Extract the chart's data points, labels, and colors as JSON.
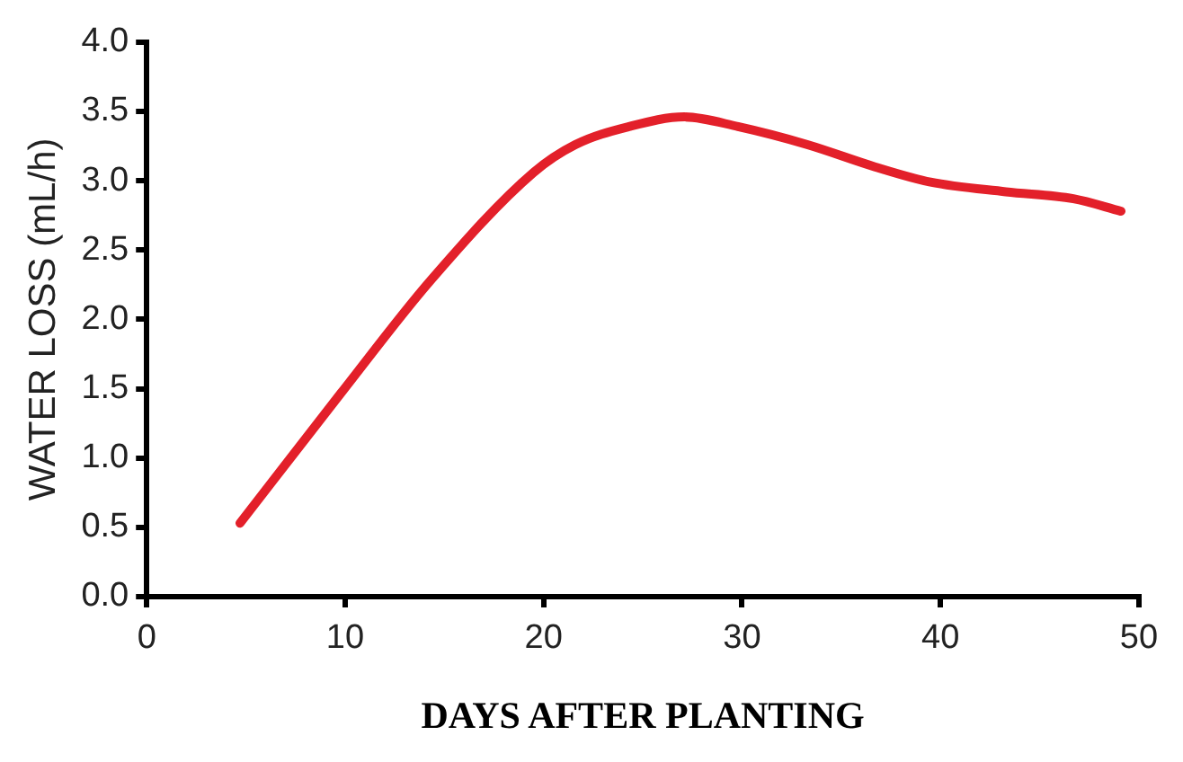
{
  "chart_data": {
    "type": "line",
    "xlabel": "DAYS AFTER PLANTING",
    "ylabel": "WATER LOSS (mL/h)",
    "x": [
      4.7,
      9.8,
      14.3,
      19.5,
      21.6,
      24.3,
      27.1,
      29.8,
      33.3,
      36.7,
      39.5,
      43.3,
      46.7,
      49.1
    ],
    "series": [
      {
        "color": "#e3202a",
        "values": [
          0.53,
          1.47,
          2.28,
          3.06,
          3.26,
          3.39,
          3.46,
          3.39,
          3.26,
          3.1,
          2.99,
          2.92,
          2.87,
          2.78
        ]
      }
    ],
    "xlim": [
      0,
      50
    ],
    "xticks": [
      0,
      10,
      20,
      30,
      40,
      50
    ],
    "ylim": [
      0,
      4
    ],
    "yticks": [
      {
        "value": 0,
        "label": "0.0"
      },
      {
        "value": 0.5,
        "label": "0.5"
      },
      {
        "value": 1,
        "label": "1.0"
      },
      {
        "value": 1.5,
        "label": "1.5"
      },
      {
        "value": 2,
        "label": "2.0"
      },
      {
        "value": 2.5,
        "label": "2.5"
      },
      {
        "value": 3,
        "label": "3.0"
      },
      {
        "value": 3.5,
        "label": "3.5"
      },
      {
        "value": 4,
        "label": "4.0"
      }
    ],
    "grid": false,
    "legend": false,
    "marker": "none",
    "line_style": "solid"
  }
}
